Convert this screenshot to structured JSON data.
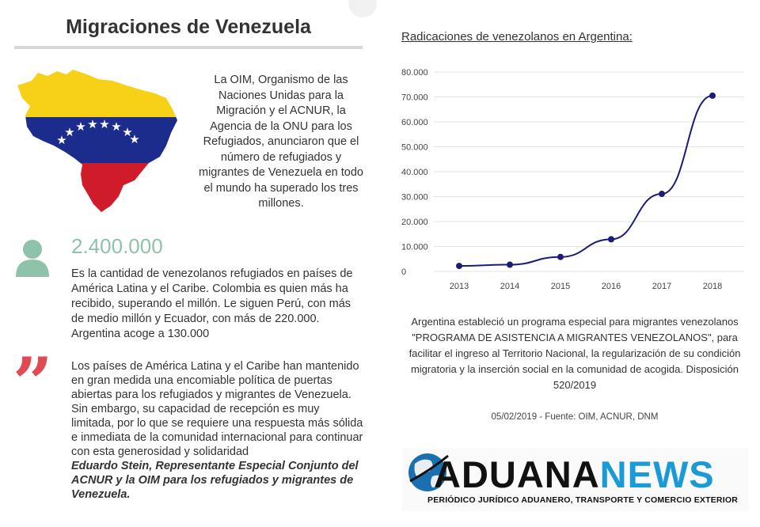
{
  "left": {
    "title": "Migraciones de Venezuela",
    "intro": "La OIM, Organismo de las Naciones Unidas para la Migración y el ACNUR, la Agencia de la ONU para los Refugiados, anunciaron que el número de refugiados y migrantes de Venezuela en todo el mundo ha superado los tres millones.",
    "stat_number": "2.400.000",
    "stat_text": "Es la cantidad de venezolanos refugiados en países de América Latina y el Caribe. Colombia es quien más ha recibido, superando el millón. Le siguen Perú, con más de medio millón y Ecuador, con más de 220.000. Argentina acoge a 130.000",
    "quote_mark": "”",
    "quote_text": "Los países de América Latina y el Caribe han mantenido en gran medida una encomiable política de puertas abiertas para los refugiados y migrantes de Venezuela. Sin embargo, su capacidad de recepción es muy limitada, por lo que se requiere una respuesta más sólida e inmediata de la comunidad internacional para continuar con esta generosidad y solidaridad",
    "quote_author": "Eduardo Stein, Representante Especial Conjunto del ACNUR y la OIM para los refugiados y migrantes de Venezuela."
  },
  "right": {
    "chart_title": "Radicaciones de venezolanos en Argentina:",
    "note": "Argentina estableció un programa especial para migrantes venezolanos \"PROGRAMA DE ASISTENCIA A MIGRANTES VENEZOLANOS\", para facilitar el ingreso al Territorio Nacional, la regularización de su condición migratoria y la inserción social en la comunidad de acogida. Disposición 520/2019",
    "source": "05/02/2019  -  Fuente: OIM, ACNUR, DNM"
  },
  "logo": {
    "word_a": "ADUANA",
    "word_b": "NEWS",
    "tagline": "PERIÓDICO JURÍDICO ADUANERO, TRANSPORTE Y COMERCIO EXTERIOR"
  },
  "colors": {
    "accent_green": "#8fc3a9",
    "quote_red": "#e04a52",
    "line": "#1b1b7a",
    "flag_yellow": "#f7d117",
    "flag_blue": "#1c2c8c",
    "flag_red": "#d01c2a",
    "news_blue": "#1a9ad6"
  },
  "icons": [
    "person-icon",
    "quote-icon",
    "venezuela-map-icon",
    "globe-icon"
  ],
  "chart_data": {
    "type": "line",
    "title": "Radicaciones de venezolanos en Argentina:",
    "categories": [
      "2013",
      "2014",
      "2015",
      "2016",
      "2017",
      "2018"
    ],
    "series": [
      {
        "values": [
          2200,
          2700,
          5800,
          12900,
          31100,
          70500
        ]
      }
    ],
    "ylim": [
      0,
      80000
    ],
    "yticks": [
      "0",
      "10.000",
      "20.000",
      "30.000",
      "40.000",
      "50.000",
      "60.000",
      "70.000",
      "80.000"
    ],
    "grid": true,
    "legend": "none"
  }
}
